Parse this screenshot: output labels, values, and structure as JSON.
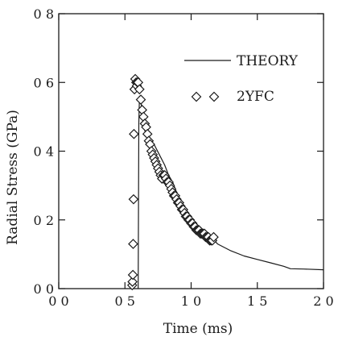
{
  "chart_data": {
    "type": "line",
    "title": "",
    "xlabel": "Time (ms)",
    "ylabel": "Radial Stress (GPa)",
    "xlim": [
      0.0,
      2.0
    ],
    "ylim": [
      0.0,
      0.8
    ],
    "xticks": [
      0.0,
      0.5,
      1.0,
      1.5,
      2.0
    ],
    "xtick_labels": [
      "0 0",
      "0 5",
      "1 0",
      "1 5",
      "2 0"
    ],
    "yticks": [
      0.0,
      0.2,
      0.4,
      0.6,
      0.8
    ],
    "ytick_labels": [
      "0 0",
      "0 2",
      "0 4",
      "0 6",
      "0 8"
    ],
    "grid": false,
    "legend_position": "top-right",
    "series": [
      {
        "name": "THEORY",
        "style": "solid-line",
        "color": "#1a1a1a",
        "x": [
          0.6,
          0.605,
          0.61,
          0.62,
          0.63,
          0.65,
          0.68,
          0.72,
          0.76,
          0.8,
          0.83,
          0.86,
          0.9,
          0.95,
          1.0,
          1.05,
          1.1,
          1.15,
          1.2,
          1.3,
          1.4,
          1.5,
          1.6,
          1.7,
          1.75,
          1.85,
          2.0
        ],
        "y": [
          0.0,
          0.48,
          0.56,
          0.56,
          0.5,
          0.46,
          0.43,
          0.42,
          0.39,
          0.36,
          0.33,
          0.31,
          0.27,
          0.23,
          0.2,
          0.18,
          0.16,
          0.15,
          0.13,
          0.11,
          0.095,
          0.085,
          0.075,
          0.065,
          0.058,
          0.057,
          0.055
        ]
      },
      {
        "name": "2YFC",
        "style": "open-diamond-markers",
        "color": "#1a1a1a",
        "x": [
          0.555,
          0.557,
          0.56,
          0.562,
          0.565,
          0.568,
          0.572,
          0.578,
          0.585,
          0.59,
          0.595,
          0.6,
          0.61,
          0.62,
          0.63,
          0.64,
          0.65,
          0.66,
          0.67,
          0.68,
          0.69,
          0.7,
          0.71,
          0.72,
          0.73,
          0.74,
          0.75,
          0.76,
          0.77,
          0.78,
          0.79,
          0.8,
          0.81,
          0.82,
          0.83,
          0.84,
          0.85,
          0.86,
          0.87,
          0.88,
          0.89,
          0.9,
          0.91,
          0.92,
          0.93,
          0.94,
          0.95,
          0.96,
          0.97,
          0.98,
          0.99,
          1.0,
          1.01,
          1.02,
          1.03,
          1.04,
          1.05,
          1.06,
          1.07,
          1.08,
          1.09,
          1.1,
          1.11,
          1.12,
          1.13,
          1.14,
          1.15,
          1.16,
          1.17
        ],
        "y": [
          0.01,
          0.02,
          0.04,
          0.13,
          0.26,
          0.45,
          0.58,
          0.61,
          0.6,
          0.59,
          0.6,
          0.6,
          0.58,
          0.55,
          0.52,
          0.5,
          0.48,
          0.47,
          0.45,
          0.43,
          0.42,
          0.4,
          0.39,
          0.38,
          0.37,
          0.36,
          0.35,
          0.34,
          0.33,
          0.32,
          0.33,
          0.33,
          0.32,
          0.31,
          0.31,
          0.3,
          0.29,
          0.28,
          0.27,
          0.27,
          0.26,
          0.25,
          0.25,
          0.24,
          0.23,
          0.23,
          0.22,
          0.21,
          0.21,
          0.2,
          0.2,
          0.19,
          0.19,
          0.18,
          0.18,
          0.17,
          0.17,
          0.17,
          0.16,
          0.16,
          0.16,
          0.16,
          0.15,
          0.15,
          0.15,
          0.14,
          0.14,
          0.14,
          0.15
        ]
      }
    ]
  },
  "legend": {
    "theory_label": "THEORY",
    "data_label": "2YFC"
  }
}
